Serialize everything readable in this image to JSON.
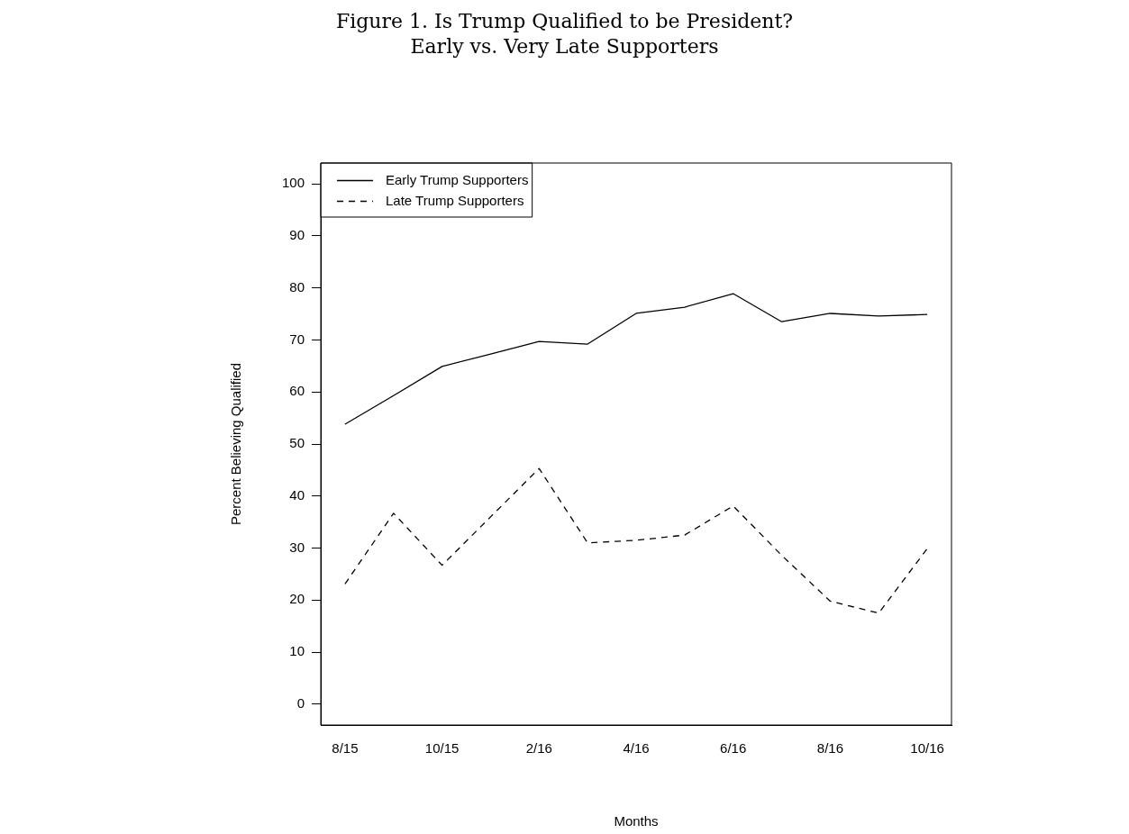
{
  "chart_data": {
    "type": "line",
    "title": "Figure 1. Is Trump Qualified to be President?",
    "subtitle": "Early vs. Very Late Supporters",
    "xlabel": "Months",
    "ylabel": "Percent Believing Qualified",
    "categories": [
      "8/15",
      null,
      "10/15",
      null,
      "2/16",
      null,
      "4/16",
      null,
      "6/16",
      null,
      "8/16",
      null,
      "10/16"
    ],
    "series": [
      {
        "name": "Early Trump Supporters",
        "color": "#000000",
        "line_style": "solid",
        "values": [
          53.8,
          59.3,
          64.9,
          67.3,
          69.7,
          69.2,
          75.1,
          76.3,
          78.9,
          73.5,
          75.1,
          74.6,
          74.9
        ]
      },
      {
        "name": "Late Trump Supporters",
        "color": "#000000",
        "line_style": "dashed",
        "values": [
          23.1,
          36.7,
          26.7,
          36.0,
          45.3,
          31.0,
          31.5,
          32.5,
          38.1,
          28.6,
          19.8,
          17.5,
          29.9
        ]
      }
    ],
    "ylim": [
      -4,
      104
    ],
    "yticks": [
      0,
      10,
      20,
      30,
      40,
      50,
      60,
      70,
      80,
      90,
      100
    ],
    "grid": false,
    "legend": "top left",
    "marker": "none"
  }
}
